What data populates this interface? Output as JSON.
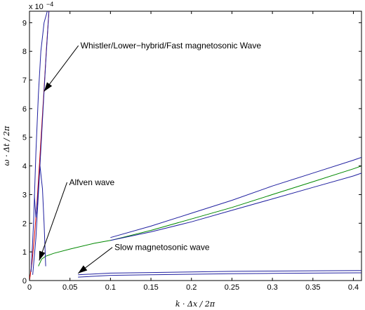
{
  "chart_data": {
    "type": "line",
    "title": "",
    "xlabel": "k · Δx / 2π",
    "ylabel": "ω · Δt / 2π",
    "xlim": [
      0,
      0.41
    ],
    "ylim": [
      0,
      9.4
    ],
    "y_multiplier": "x 10",
    "y_exponent": "−4",
    "xticks": [
      0,
      0.05,
      0.1,
      0.15,
      0.2,
      0.25,
      0.3,
      0.35,
      0.4
    ],
    "xtick_labels": [
      "0",
      "0.05",
      "0.1",
      "0.15",
      "0.2",
      "0.25",
      "0.3",
      "0.35",
      "0.4"
    ],
    "yticks": [
      0,
      1,
      2,
      3,
      4,
      5,
      6,
      7,
      8,
      9
    ],
    "ytick_labels": [
      "0",
      "1",
      "2",
      "3",
      "4",
      "5",
      "6",
      "7",
      "8",
      "9"
    ],
    "grid": false,
    "series": [
      {
        "color": "#dd0000",
        "x": [
          0,
          0.003,
          0.006,
          0.009,
          0.012,
          0.015,
          0.018,
          0.021,
          0.024
        ],
        "y": [
          0,
          0.6,
          1.5,
          2.6,
          3.9,
          5.3,
          6.7,
          8.1,
          9.4
        ]
      },
      {
        "color": "#008800",
        "x": [
          0.011,
          0.015,
          0.02,
          0.03,
          0.05,
          0.08,
          0.1,
          0.15,
          0.2,
          0.25,
          0.3,
          0.35,
          0.4,
          0.41
        ],
        "y": [
          0.5,
          0.75,
          0.85,
          0.95,
          1.1,
          1.3,
          1.4,
          1.75,
          2.15,
          2.55,
          3.0,
          3.45,
          3.9,
          4.0
        ]
      },
      {
        "color": "#2020a0",
        "x": [
          0.1,
          0.15,
          0.2,
          0.25,
          0.3,
          0.35,
          0.4,
          0.41
        ],
        "y": [
          1.5,
          1.9,
          2.35,
          2.8,
          3.3,
          3.75,
          4.2,
          4.3
        ]
      },
      {
        "color": "#2020a0",
        "x": [
          0.1,
          0.15,
          0.2,
          0.25,
          0.3,
          0.35,
          0.4,
          0.41
        ],
        "y": [
          1.4,
          1.7,
          2.05,
          2.45,
          2.85,
          3.25,
          3.65,
          3.75
        ]
      },
      {
        "color": "#2020a0",
        "x": [
          0.06,
          0.1,
          0.15,
          0.2,
          0.25,
          0.3,
          0.35,
          0.41
        ],
        "y": [
          0.2,
          0.26,
          0.28,
          0.3,
          0.32,
          0.33,
          0.34,
          0.35
        ]
      },
      {
        "color": "#2020a0",
        "x": [
          0.06,
          0.1,
          0.15,
          0.2,
          0.25,
          0.3,
          0.35,
          0.41
        ],
        "y": [
          0.12,
          0.18,
          0.2,
          0.22,
          0.24,
          0.25,
          0.26,
          0.27
        ]
      },
      {
        "color": "#2020a0",
        "x": [
          0.002,
          0.005,
          0.008,
          0.011,
          0.014,
          0.018,
          0.022
        ],
        "y": [
          0.3,
          2.0,
          4.5,
          6.5,
          8.0,
          9.0,
          9.4
        ]
      },
      {
        "color": "#2020a0",
        "x": [
          0.004,
          0.008,
          0.012,
          0.016,
          0.02,
          0.024
        ],
        "y": [
          0.2,
          1.5,
          3.5,
          5.6,
          7.6,
          9.4
        ]
      },
      {
        "color": "#2020a0",
        "x": [
          0.006,
          0.008,
          0.01,
          0.013,
          0.016,
          0.018,
          0.02
        ],
        "y": [
          3.0,
          2.2,
          2.8,
          4.0,
          3.2,
          2.0,
          0.5
        ]
      }
    ],
    "annotations": [
      {
        "text": "Whistler/Lower−hybrid/Fast magnetosonic Wave",
        "text_x": 0.063,
        "text_y": 8.1,
        "arrow_to_x": 0.018,
        "arrow_to_y": 6.6
      },
      {
        "text": "Alfven wave",
        "text_x": 0.049,
        "text_y": 3.33,
        "arrow_to_x": 0.012,
        "arrow_to_y": 0.7
      },
      {
        "text": "Slow magnetosonic wave",
        "text_x": 0.105,
        "text_y": 1.06,
        "arrow_to_x": 0.06,
        "arrow_to_y": 0.25
      }
    ]
  }
}
